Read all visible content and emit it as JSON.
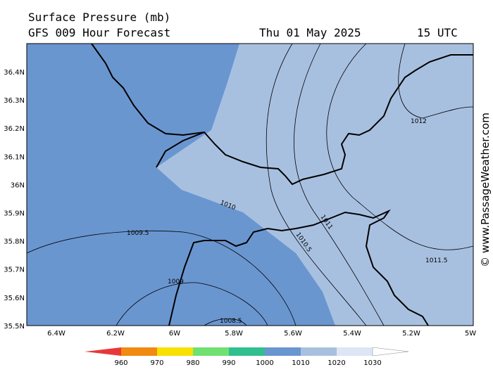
{
  "header": {
    "title": "Surface Pressure (mb)",
    "subtitle": "GFS 009 Hour Forecast",
    "date": "Thu 01 May 2025",
    "time": "15 UTC"
  },
  "lat_labels": [
    "36.4N",
    "36.3N",
    "36.2N",
    "36.1N",
    "36N",
    "35.9N",
    "35.8N",
    "35.7N",
    "35.6N",
    "35.5N"
  ],
  "lon_labels": [
    "6.4W",
    "6.2W",
    "6W",
    "5.8W",
    "5.6W",
    "5.4W",
    "5.2W",
    "5W"
  ],
  "contour_labels": [
    "1012",
    "1010",
    "1011",
    "1010.5",
    "1009.5",
    "1009",
    "1008.5",
    "1011.5"
  ],
  "colorbar_labels": [
    "960",
    "970",
    "980",
    "990",
    "1000",
    "1010",
    "1020",
    "1030"
  ],
  "watermark": "© www.PassageWeather.com"
}
